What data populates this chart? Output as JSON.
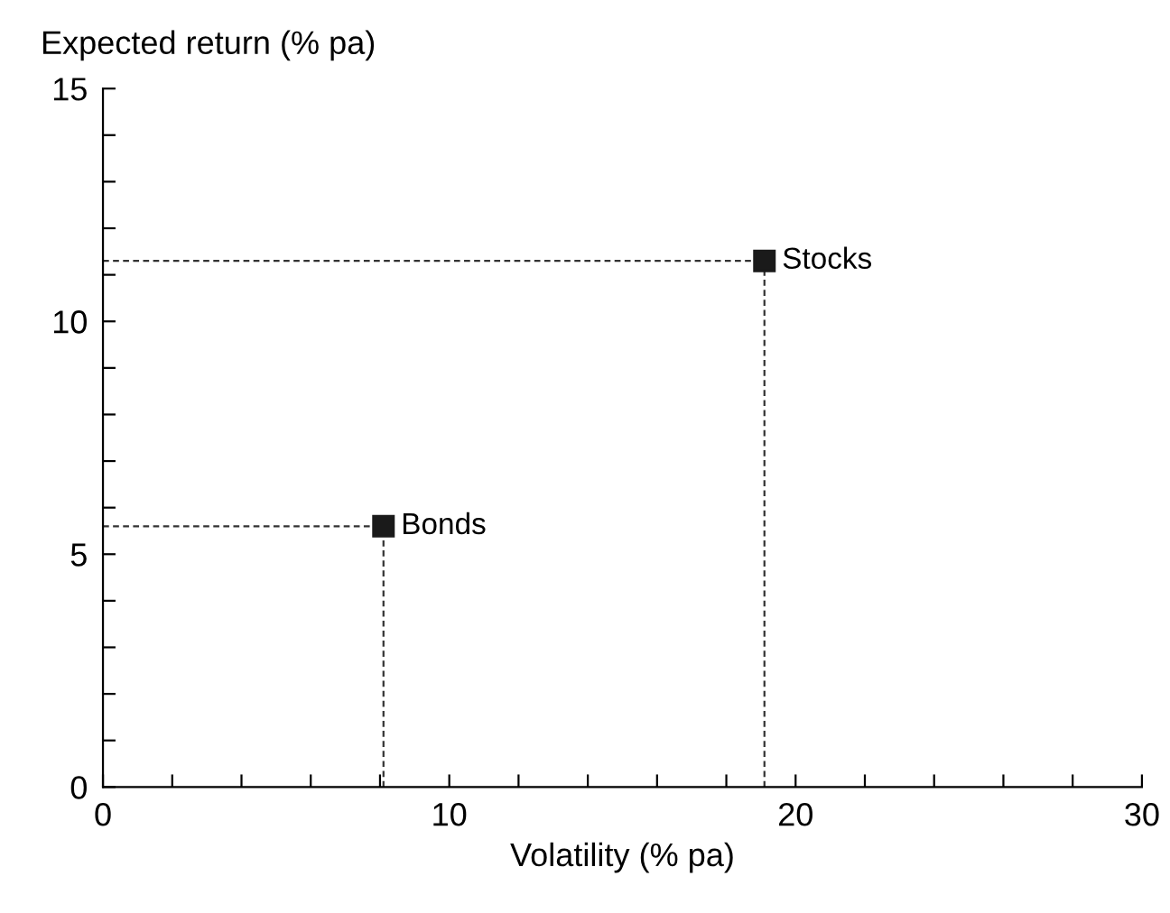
{
  "chart_data": {
    "type": "scatter",
    "xlabel": "Volatility (% pa)",
    "ylabel": "Expected return (% pa)",
    "series": [
      {
        "name": "Bonds",
        "color": "#1a1a1a",
        "x": [
          8.1
        ],
        "values": [
          5.6
        ]
      },
      {
        "name": "Stocks",
        "color": "#1a1a1a",
        "x": [
          19.1
        ],
        "values": [
          11.3
        ]
      }
    ],
    "xlim": [
      0,
      30
    ],
    "ylim": [
      0,
      15
    ],
    "xticks": [
      0,
      {
        "value": 2,
        "label": null
      },
      {
        "value": 4,
        "label": null
      },
      {
        "value": 6,
        "label": null
      },
      {
        "value": 8,
        "label": null
      },
      10,
      {
        "value": 12,
        "label": null
      },
      {
        "value": 14,
        "label": null
      },
      {
        "value": 16,
        "label": null
      },
      {
        "value": 18,
        "label": null
      },
      20,
      {
        "value": 22,
        "label": null
      },
      {
        "value": 24,
        "label": null
      },
      {
        "value": 26,
        "label": null
      },
      {
        "value": 28,
        "label": null
      },
      30
    ],
    "yticks": [
      0,
      {
        "value": 1,
        "label": null
      },
      {
        "value": 2,
        "label": null
      },
      {
        "value": 3,
        "label": null
      },
      {
        "value": 4,
        "label": null
      },
      5,
      {
        "value": 6,
        "label": null
      },
      {
        "value": 7,
        "label": null
      },
      {
        "value": 8,
        "label": null
      },
      {
        "value": 9,
        "label": null
      },
      10,
      {
        "value": 11,
        "label": null
      },
      {
        "value": 12,
        "label": null
      },
      {
        "value": 13,
        "label": null
      },
      {
        "value": 14,
        "label": null
      },
      15
    ],
    "marker": "square",
    "legend": false,
    "grid": false
  }
}
